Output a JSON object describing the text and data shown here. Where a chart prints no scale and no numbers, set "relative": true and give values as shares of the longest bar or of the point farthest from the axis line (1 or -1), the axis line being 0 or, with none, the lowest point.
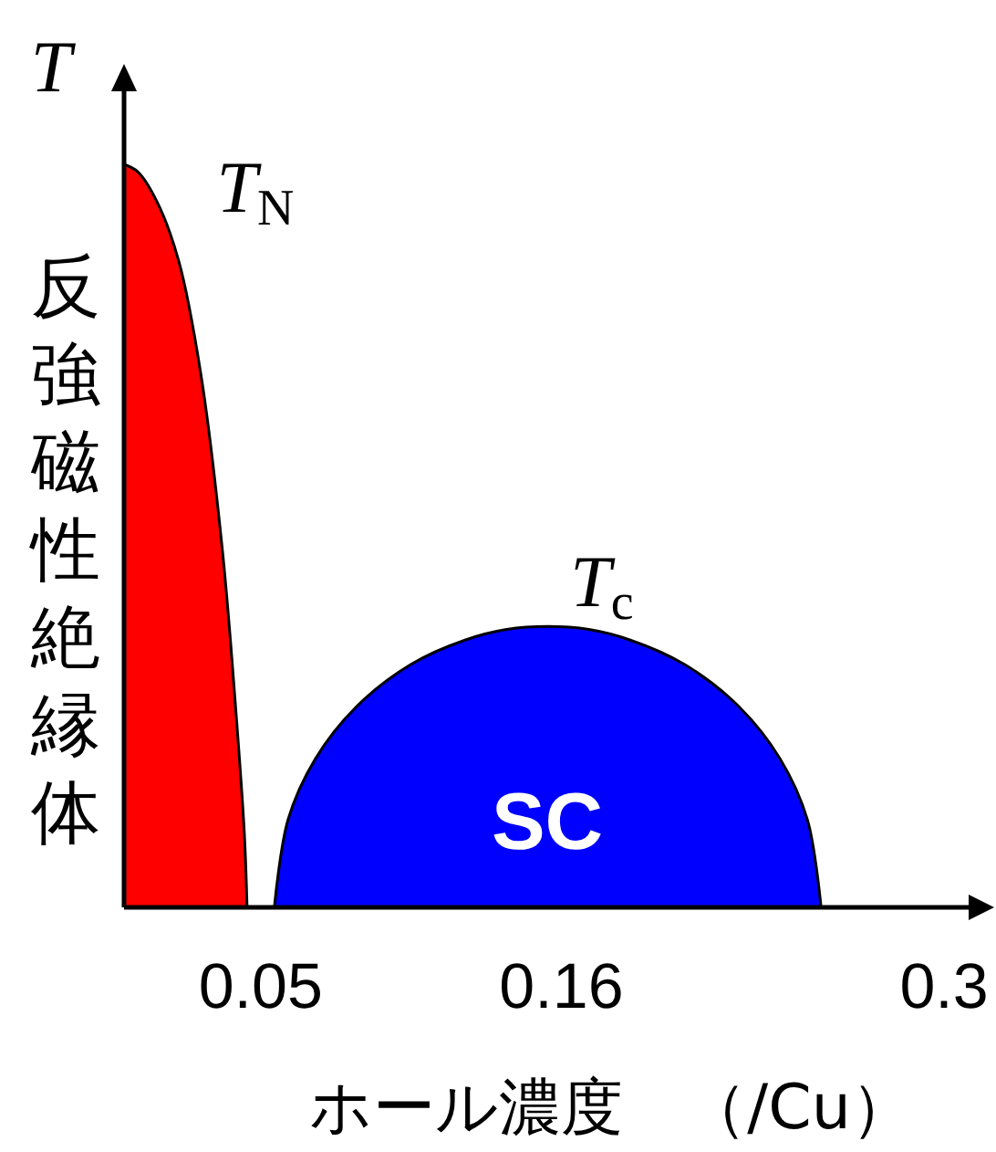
{
  "chart_data": {
    "type": "area",
    "relative": true,
    "ylabel": "T",
    "xlabel": "ホール濃度　（/Cu）",
    "xlim": [
      0,
      0.315
    ],
    "xticks": [
      0.05,
      0.16,
      0.3
    ],
    "tick_labels": "x",
    "grid": false,
    "series": [
      {
        "color": "#ff0000",
        "x": [
          0,
          0.005,
          0.012,
          0.02,
          0.028,
          0.036,
          0.041,
          0.044,
          0.045
        ],
        "values": [
          1,
          0.99,
          0.95,
          0.87,
          0.72,
          0.48,
          0.26,
          0.1,
          0
        ]
      },
      {
        "color": "#0000ff",
        "x": [
          0.055,
          0.06,
          0.07,
          0.085,
          0.105,
          0.125,
          0.14,
          0.155,
          0.17,
          0.185,
          0.205,
          0.225,
          0.24,
          0.25,
          0.255
        ],
        "values": [
          0,
          0.118,
          0.2,
          0.27,
          0.327,
          0.36,
          0.374,
          0.378,
          0.374,
          0.36,
          0.327,
          0.27,
          0.2,
          0.118,
          0
        ]
      }
    ],
    "annotations": [
      "T$_{N}$",
      "T$_{c}$",
      "SC",
      "反強磁性絶縁体"
    ]
  }
}
